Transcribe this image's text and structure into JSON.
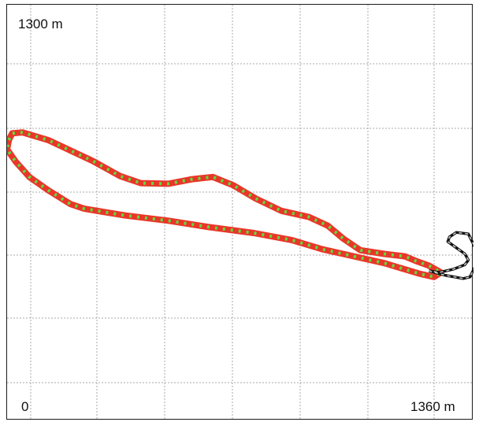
{
  "chart_data": {
    "type": "line",
    "title": "",
    "corner_labels": {
      "y_max": "1300 m",
      "x_min": "0",
      "x_max": "1360 m"
    },
    "xlim": [
      0,
      1360
    ],
    "ylim": [
      0,
      1300
    ],
    "grid": true,
    "grid_style": "dotted",
    "series": [
      {
        "color_primary": "#e8372a",
        "color_secondary": "#5fdc3c",
        "style": "alternating-dots",
        "x": [
          5,
          15,
          45,
          120,
          250,
          330,
          390,
          470,
          540,
          600,
          660,
          725,
          800,
          880,
          935,
          980,
          1030,
          1100,
          1160,
          1190,
          1230,
          1265,
          1245,
          1205,
          1160,
          1100,
          1040,
          980,
          920,
          830,
          720,
          590,
          470,
          345,
          225,
          185,
          120,
          65,
          25,
          0,
          5
        ],
        "y": [
          860,
          882,
          885,
          860,
          792,
          743,
          720,
          718,
          733,
          740,
          713,
          670,
          630,
          610,
          582,
          540,
          502,
          490,
          482,
          468,
          452,
          430,
          415,
          425,
          440,
          460,
          475,
          490,
          505,
          535,
          558,
          577,
          598,
          615,
          637,
          652,
          697,
          740,
          790,
          830,
          860
        ]
      },
      {
        "color_primary": "#111111",
        "color_secondary": "#cccccc",
        "style": "dashed",
        "x": [
          1230,
          1280,
          1330,
          1350,
          1365,
          1365,
          1345,
          1310,
          1290,
          1285,
          1310,
          1335,
          1345,
          1335,
          1300,
          1260,
          1230
        ],
        "y": [
          435,
          420,
          410,
          415,
          450,
          510,
          555,
          560,
          545,
          530,
          510,
          490,
          470,
          455,
          440,
          430,
          435
        ]
      }
    ]
  }
}
